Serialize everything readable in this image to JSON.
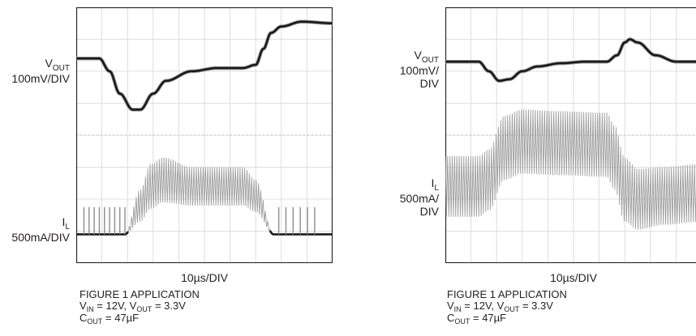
{
  "chart_data": [
    {
      "type": "line",
      "title": "",
      "timebase": "10µs/DIV",
      "grid": true,
      "divisions": {
        "x": 10,
        "y": 8
      },
      "series": [
        {
          "name": "VOUT",
          "scale": "100mV/DIV",
          "x": [
            0,
            0.9,
            1.3,
            1.7,
            2.2,
            2.5,
            3.0,
            3.5,
            4.5,
            5.5,
            6.5,
            7.0,
            7.3,
            7.6,
            8.0,
            8.8,
            10
          ],
          "y": [
            6.4,
            6.4,
            6.0,
            5.3,
            4.8,
            4.8,
            5.3,
            5.7,
            6.0,
            6.1,
            6.1,
            6.2,
            6.7,
            7.2,
            7.4,
            7.55,
            7.5
          ]
        },
        {
          "name": "IL",
          "scale": "500mA/DIV",
          "x": [
            0,
            1.9,
            2.5,
            2.9,
            3.4,
            4.5,
            6.5,
            7.0,
            7.7,
            10
          ],
          "y": [
            0.9,
            0.9,
            1.8,
            2.4,
            2.6,
            2.4,
            2.4,
            2.1,
            0.9,
            0.9
          ],
          "ripple_div": [
            0,
            0,
            0.5,
            0.7,
            0.7,
            0.6,
            0.6,
            0.5,
            0,
            0
          ]
        }
      ],
      "labels": {
        "vout_main": "V",
        "vout_sub": "OUT",
        "vout_scale": "100mV/DIV",
        "il_main": "I",
        "il_sub": "L",
        "il_scale": "500mA/DIV",
        "xlabel": "10µs/DIV"
      },
      "caption": {
        "line1": "FIGURE 1 APPLICATION",
        "vin_v": "V",
        "vin_sub": "IN",
        "vin_rest": " = 12V, ",
        "vout_v": "V",
        "vout_sub": "OUT",
        "vout_rest": " = 3.3V",
        "c_c": "C",
        "c_sub": "OUT",
        "c_rest": " = 47µF"
      }
    },
    {
      "type": "line",
      "title": "",
      "timebase": "10µs/DIV",
      "grid": true,
      "divisions": {
        "x": 10,
        "y": 8
      },
      "series": [
        {
          "name": "VOUT",
          "scale": "100mV/",
          "x": [
            0,
            1.3,
            1.7,
            2.1,
            2.5,
            3.0,
            3.6,
            4.5,
            5.5,
            6.3,
            6.7,
            7.0,
            7.2,
            7.5,
            8.2,
            9.0,
            10
          ],
          "y": [
            6.3,
            6.3,
            6.0,
            5.7,
            5.75,
            6.0,
            6.15,
            6.25,
            6.3,
            6.3,
            6.5,
            6.9,
            7.0,
            6.9,
            6.5,
            6.3,
            6.3
          ]
        },
        {
          "name": "IL",
          "scale": "500mA/",
          "x": [
            0,
            1.3,
            1.7,
            2.3,
            3.0,
            4.5,
            6.3,
            6.6,
            7.0,
            7.5,
            8.5,
            10
          ],
          "y": [
            2.4,
            2.4,
            2.6,
            3.6,
            3.8,
            3.75,
            3.7,
            3.3,
            2.3,
            2.0,
            2.1,
            2.2
          ],
          "ripple_div": [
            0.95,
            0.95,
            0.95,
            1.0,
            1.0,
            1.0,
            1.0,
            1.0,
            1.0,
            0.95,
            0.9,
            0.9
          ]
        }
      ],
      "labels": {
        "vout_main": "V",
        "vout_sub": "OUT",
        "vout_scale_1": "100mV/",
        "vout_scale_2": "DIV",
        "il_main": "I",
        "il_sub": "L",
        "il_scale_1": "500mA/",
        "il_scale_2": "DIV",
        "xlabel": "10µs/DIV"
      },
      "caption": {
        "line1": "FIGURE 1 APPLICATION",
        "vin_v": "V",
        "vin_sub": "IN",
        "vin_rest": " = 12V, ",
        "vout_v": "V",
        "vout_sub": "OUT",
        "vout_rest": " = 3.3V",
        "c_c": "C",
        "c_sub": "OUT",
        "c_rest": " = 47µF"
      }
    }
  ]
}
